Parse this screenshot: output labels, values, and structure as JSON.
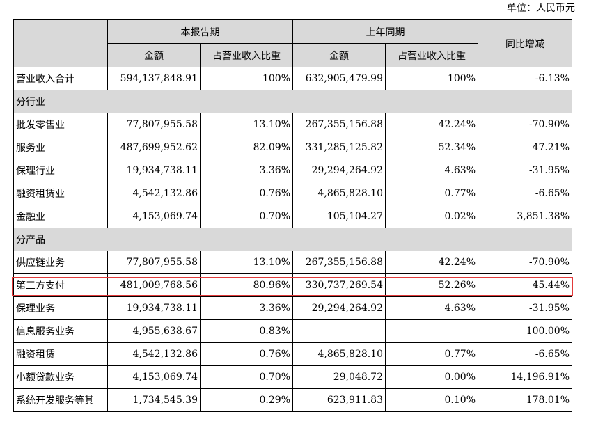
{
  "unit": "单位：人民币元",
  "header": {
    "current_period": "本报告期",
    "prior_period": "上年同期",
    "yoy": "同比增减",
    "amount": "金额",
    "ratio": "占营业收入比重"
  },
  "total": {
    "label": "营业收入合计",
    "cur_amount": "594,137,848.91",
    "cur_ratio": "100%",
    "prev_amount": "632,905,479.99",
    "prev_ratio": "100%",
    "yoy": "-6.13%"
  },
  "sections": [
    {
      "title": "分行业",
      "rows": [
        {
          "label": "批发零售业",
          "cur_amount": "77,807,955.58",
          "cur_ratio": "13.10%",
          "prev_amount": "267,355,156.88",
          "prev_ratio": "42.24%",
          "yoy": "-70.90%"
        },
        {
          "label": "服务业",
          "cur_amount": "487,699,952.62",
          "cur_ratio": "82.09%",
          "prev_amount": "331,285,125.82",
          "prev_ratio": "52.34%",
          "yoy": "47.21%"
        },
        {
          "label": "保理行业",
          "cur_amount": "19,934,738.11",
          "cur_ratio": "3.36%",
          "prev_amount": "29,294,264.92",
          "prev_ratio": "4.63%",
          "yoy": "-31.95%"
        },
        {
          "label": "融资租赁业",
          "cur_amount": "4,542,132.86",
          "cur_ratio": "0.76%",
          "prev_amount": "4,865,828.10",
          "prev_ratio": "0.77%",
          "yoy": "-6.65%"
        },
        {
          "label": "金融业",
          "cur_amount": "4,153,069.74",
          "cur_ratio": "0.70%",
          "prev_amount": "105,104.27",
          "prev_ratio": "0.02%",
          "yoy": "3,851.38%"
        }
      ]
    },
    {
      "title": "分产品",
      "rows": [
        {
          "label": "供应链业务",
          "cur_amount": "77,807,955.58",
          "cur_ratio": "13.10%",
          "prev_amount": "267,355,156.88",
          "prev_ratio": "42.24%",
          "yoy": "-70.90%"
        },
        {
          "label": "第三方支付",
          "cur_amount": "481,009,768.56",
          "cur_ratio": "80.96%",
          "prev_amount": "330,737,269.54",
          "prev_ratio": "52.26%",
          "yoy": "45.44%"
        },
        {
          "label": "保理业务",
          "cur_amount": "19,934,738.11",
          "cur_ratio": "3.36%",
          "prev_amount": "29,294,264.92",
          "prev_ratio": "4.63%",
          "yoy": "-31.95%"
        },
        {
          "label": "信息服务业务",
          "cur_amount": "4,955,638.67",
          "cur_ratio": "0.83%",
          "prev_amount": "",
          "prev_ratio": "",
          "yoy": "100.00%"
        },
        {
          "label": "融资租赁",
          "cur_amount": "4,542,132.86",
          "cur_ratio": "0.76%",
          "prev_amount": "4,865,828.10",
          "prev_ratio": "0.77%",
          "yoy": "-6.65%"
        },
        {
          "label": "小额贷款业务",
          "cur_amount": "4,153,069.74",
          "cur_ratio": "0.70%",
          "prev_amount": "29,048.72",
          "prev_ratio": "0.00%",
          "yoy": "14,196.91%"
        },
        {
          "label": "系统开发服务等其",
          "cur_amount": "1,734,545.39",
          "cur_ratio": "0.29%",
          "prev_amount": "623,911.83",
          "prev_ratio": "0.10%",
          "yoy": "178.01%"
        }
      ]
    }
  ],
  "highlight_color": "#e23a3a"
}
